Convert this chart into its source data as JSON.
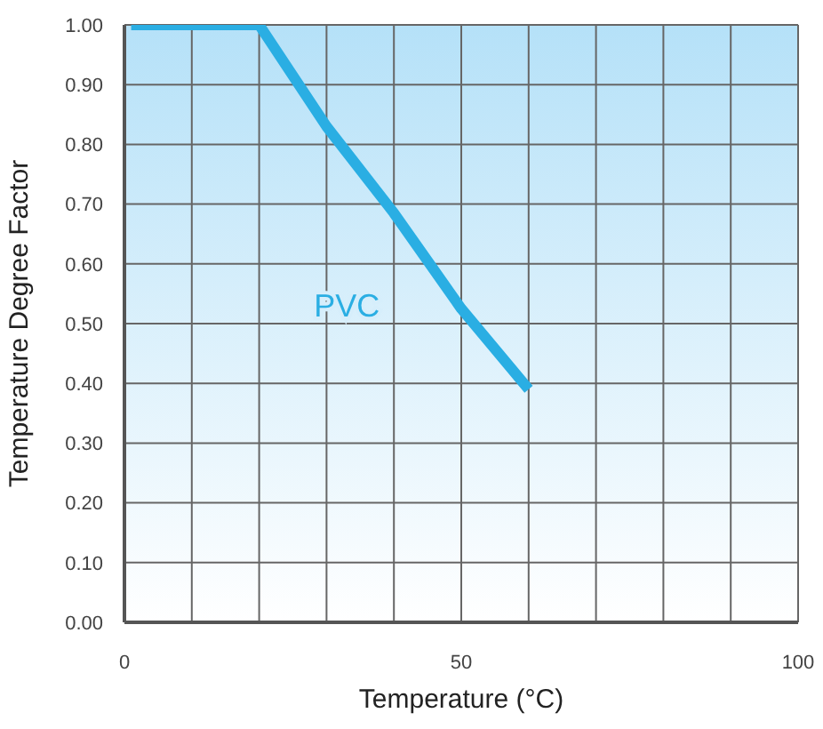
{
  "chart_data": {
    "type": "line",
    "xlabel": "Temperature (°C)",
    "ylabel": "Temperature Degree Factor",
    "series": [
      {
        "name": "PVC",
        "color": "#2aaee3",
        "x": [
          1,
          20,
          30,
          40,
          50,
          60
        ],
        "values": [
          1.0,
          1.0,
          0.83,
          0.685,
          0.525,
          0.39
        ]
      }
    ],
    "xlim": [
      0,
      100
    ],
    "xticks": [
      0,
      50,
      100
    ],
    "ylim": [
      0,
      1
    ],
    "yticks": [
      {
        "value": 0,
        "label": "0.00"
      },
      {
        "value": 0.1,
        "label": "0.10"
      },
      {
        "value": 0.2,
        "label": "0.20"
      },
      {
        "value": 0.3,
        "label": "0.30"
      },
      {
        "value": 0.4,
        "label": "0.40"
      },
      {
        "value": 0.5,
        "label": "0.50"
      },
      {
        "value": 0.6,
        "label": "0.60"
      },
      {
        "value": 0.7,
        "label": "0.70"
      },
      {
        "value": 0.8,
        "label": "0.80"
      },
      {
        "value": 0.9,
        "label": "0.90"
      },
      {
        "value": 1,
        "label": "1.00"
      }
    ],
    "grid": true,
    "legend": false,
    "marker": "none",
    "line_style": "solid"
  }
}
